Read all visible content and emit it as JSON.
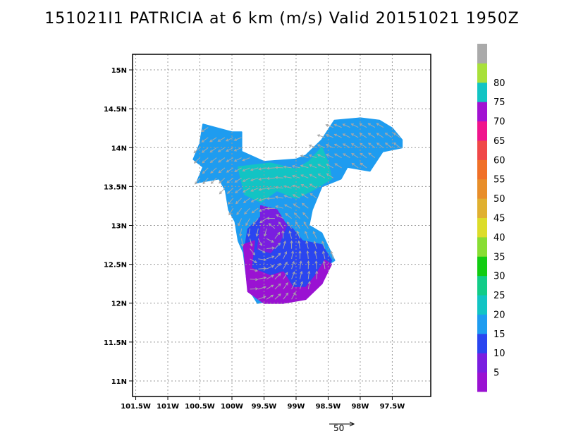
{
  "title": "151021I1 PATRICIA at 6 km (m/s) Valid 20151021  1950Z",
  "chart_data": {
    "type": "heatmap",
    "title": "151021I1 PATRICIA at 6 km (m/s) Valid 20151021  1950Z",
    "variable": "wind speed",
    "units": "m/s",
    "x_axis": {
      "range": [
        -101.55,
        -96.9
      ],
      "ticks": [
        -101.5,
        -101.0,
        -100.5,
        -100.0,
        -99.5,
        -99.0,
        -98.5,
        -98.0,
        -97.5
      ],
      "tick_labels": [
        "101.5W",
        "101W",
        "100.5W",
        "100W",
        "99.5W",
        "99W",
        "98.5W",
        "98W",
        "97.5W"
      ]
    },
    "y_axis": {
      "range": [
        10.8,
        15.2
      ],
      "ticks": [
        11.0,
        11.5,
        12.0,
        12.5,
        13.0,
        13.5,
        14.0,
        14.5,
        15.0
      ],
      "tick_labels": [
        "11N",
        "11.5N",
        "12N",
        "12.5N",
        "13N",
        "13.5N",
        "14N",
        "14.5N",
        "15N"
      ]
    },
    "grid": true,
    "colorbar": {
      "bins": [
        {
          "min": 0,
          "max": 5,
          "color": "#9a12d2"
        },
        {
          "min": 5,
          "max": 10,
          "color": "#7a1ee0"
        },
        {
          "min": 10,
          "max": 15,
          "color": "#2a45f0"
        },
        {
          "min": 15,
          "max": 20,
          "color": "#1e9cf0"
        },
        {
          "min": 20,
          "max": 25,
          "color": "#12c4c4"
        },
        {
          "min": 25,
          "max": 30,
          "color": "#12cc88"
        },
        {
          "min": 30,
          "max": 35,
          "color": "#12cc12"
        },
        {
          "min": 35,
          "max": 40,
          "color": "#88dd33"
        },
        {
          "min": 40,
          "max": 45,
          "color": "#dcdc2a"
        },
        {
          "min": 45,
          "max": 50,
          "color": "#e0b030"
        },
        {
          "min": 50,
          "max": 55,
          "color": "#e88e2a"
        },
        {
          "min": 55,
          "max": 60,
          "color": "#f07028"
        },
        {
          "min": 60,
          "max": 65,
          "color": "#f04848"
        },
        {
          "min": 65,
          "max": 70,
          "color": "#f0148c"
        },
        {
          "min": 70,
          "max": 75,
          "color": "#a212d2"
        },
        {
          "min": 75,
          "max": 80,
          "color": "#12c4c4"
        },
        {
          "min": 80,
          "max": 85,
          "color": "#a8e03a"
        },
        {
          "min": 85,
          "max": 90,
          "color": "#aaaaaa"
        }
      ],
      "labels": [
        "5",
        "10",
        "15",
        "20",
        "25",
        "30",
        "35",
        "40",
        "45",
        "50",
        "55",
        "60",
        "65",
        "70",
        "75",
        "80"
      ]
    },
    "vector_reference": {
      "label": "50",
      "units": "m/s"
    },
    "regions": [
      {
        "level": 15,
        "color": "#1e9cf0",
        "points": [
          [
            -100.45,
            14.3
          ],
          [
            -100.0,
            14.2
          ],
          [
            -99.85,
            14.2
          ],
          [
            -99.85,
            13.95
          ],
          [
            -99.5,
            13.82
          ],
          [
            -99.0,
            13.85
          ],
          [
            -98.85,
            13.9
          ],
          [
            -98.6,
            14.1
          ],
          [
            -98.4,
            14.35
          ],
          [
            -98.0,
            14.38
          ],
          [
            -97.7,
            14.35
          ],
          [
            -97.5,
            14.25
          ],
          [
            -97.35,
            14.1
          ],
          [
            -97.35,
            14.0
          ],
          [
            -97.65,
            13.95
          ],
          [
            -97.85,
            13.7
          ],
          [
            -98.2,
            13.75
          ],
          [
            -98.3,
            13.6
          ],
          [
            -98.6,
            13.5
          ],
          [
            -98.75,
            13.2
          ],
          [
            -98.8,
            13.0
          ],
          [
            -98.6,
            12.9
          ],
          [
            -98.4,
            12.55
          ],
          [
            -98.5,
            12.5
          ],
          [
            -98.6,
            12.25
          ],
          [
            -98.9,
            12.15
          ],
          [
            -99.0,
            12.05
          ],
          [
            -99.2,
            12.0
          ],
          [
            -99.4,
            12.03
          ],
          [
            -99.6,
            12.0
          ],
          [
            -99.75,
            12.2
          ],
          [
            -99.82,
            12.65
          ],
          [
            -99.9,
            12.8
          ],
          [
            -99.95,
            13.05
          ],
          [
            -100.05,
            13.2
          ],
          [
            -100.1,
            13.45
          ],
          [
            -100.2,
            13.6
          ],
          [
            -100.55,
            13.55
          ],
          [
            -100.45,
            13.75
          ],
          [
            -100.6,
            13.85
          ],
          [
            -100.5,
            14.05
          ]
        ]
      },
      {
        "level": 20,
        "color": "#12c4c4",
        "points": [
          [
            -99.9,
            13.75
          ],
          [
            -99.4,
            13.8
          ],
          [
            -99.0,
            13.72
          ],
          [
            -98.8,
            13.82
          ],
          [
            -98.6,
            14.0
          ],
          [
            -98.5,
            13.8
          ],
          [
            -98.45,
            13.6
          ],
          [
            -98.75,
            13.45
          ],
          [
            -99.0,
            13.35
          ],
          [
            -99.3,
            13.45
          ],
          [
            -99.55,
            13.3
          ],
          [
            -99.8,
            13.4
          ]
        ]
      },
      {
        "level": 10,
        "color": "#2a45f0",
        "points": [
          [
            -99.75,
            12.95
          ],
          [
            -99.5,
            13.15
          ],
          [
            -99.2,
            13.05
          ],
          [
            -99.05,
            12.95
          ],
          [
            -98.9,
            12.8
          ],
          [
            -98.6,
            12.75
          ],
          [
            -98.45,
            12.55
          ],
          [
            -98.6,
            12.25
          ],
          [
            -98.9,
            12.15
          ],
          [
            -99.2,
            12.05
          ],
          [
            -99.5,
            12.1
          ],
          [
            -99.7,
            12.35
          ],
          [
            -99.8,
            12.7
          ]
        ]
      },
      {
        "level": 5,
        "color": "#7a1ee0",
        "points": [
          [
            -99.55,
            13.25
          ],
          [
            -99.3,
            13.2
          ],
          [
            -99.15,
            13.0
          ],
          [
            -99.25,
            12.8
          ],
          [
            -99.4,
            12.65
          ],
          [
            -99.6,
            12.7
          ],
          [
            -99.55,
            12.95
          ]
        ]
      },
      {
        "level": 0,
        "color": "#9a12d2",
        "points": [
          [
            -99.82,
            12.75
          ],
          [
            -99.65,
            12.8
          ],
          [
            -99.7,
            12.45
          ],
          [
            -99.4,
            12.35
          ],
          [
            -99.2,
            12.4
          ],
          [
            -99.05,
            12.2
          ],
          [
            -98.85,
            12.2
          ],
          [
            -98.7,
            12.35
          ],
          [
            -98.55,
            12.55
          ],
          [
            -98.45,
            12.5
          ],
          [
            -98.6,
            12.25
          ],
          [
            -98.85,
            12.05
          ],
          [
            -99.2,
            12.0
          ],
          [
            -99.5,
            12.0
          ],
          [
            -99.75,
            12.15
          ]
        ]
      }
    ]
  }
}
